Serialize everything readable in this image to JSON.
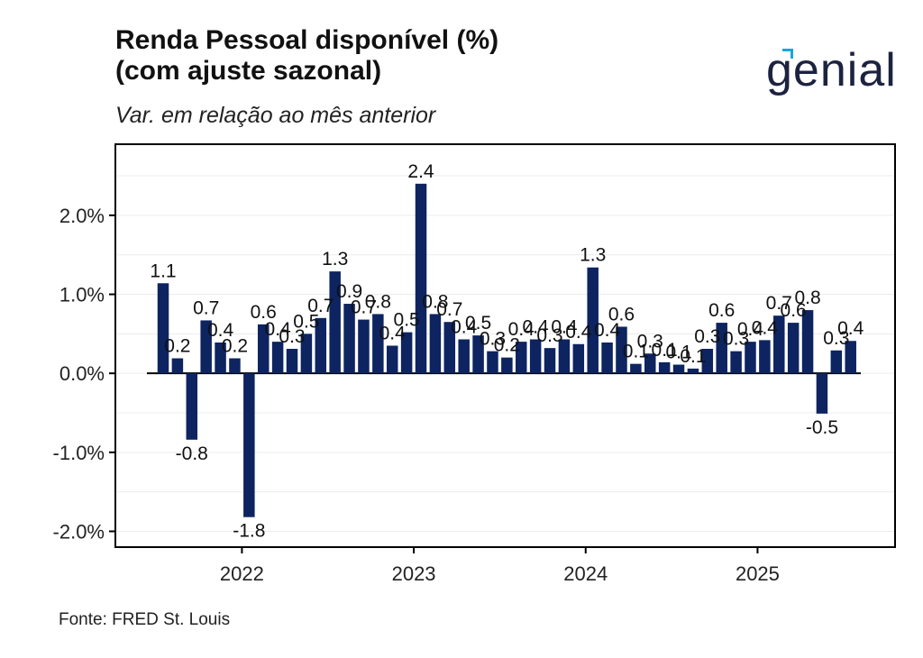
{
  "header": {
    "title_line1": "Renda Pessoal disponível (%)",
    "title_line2": "(com ajuste sazonal)",
    "subtitle": "Var. em relação ao mês anterior"
  },
  "logo": {
    "text": "genial",
    "accent_color": "#19a7d6",
    "text_color": "#1c2340"
  },
  "footer": {
    "source": "Fonte: FRED St. Louis"
  },
  "colors": {
    "bar": "#0d2461",
    "axis": "#000000",
    "grid": "#ececec"
  },
  "chart_data": {
    "type": "bar",
    "title": "Renda Pessoal disponível (%) (com ajuste sazonal)",
    "subtitle": "Var. em relação ao mês anterior",
    "x": [
      "2021-07",
      "2021-08",
      "2021-09",
      "2021-10",
      "2021-11",
      "2021-12",
      "2022-01",
      "2022-02",
      "2022-03",
      "2022-04",
      "2022-05",
      "2022-06",
      "2022-07",
      "2022-08",
      "2022-09",
      "2022-10",
      "2022-11",
      "2022-12",
      "2023-01",
      "2023-02",
      "2023-03",
      "2023-04",
      "2023-05",
      "2023-06",
      "2023-07",
      "2023-08",
      "2023-09",
      "2023-10",
      "2023-11",
      "2023-12",
      "2024-01",
      "2024-02",
      "2024-03",
      "2024-04",
      "2024-05",
      "2024-06",
      "2024-07",
      "2024-08",
      "2024-09",
      "2024-10",
      "2024-11",
      "2024-12",
      "2025-01",
      "2025-02",
      "2025-03",
      "2025-04",
      "2025-05",
      "2025-06",
      "2025-07"
    ],
    "values": [
      1.14,
      0.19,
      -0.84,
      0.67,
      0.39,
      0.19,
      -1.82,
      0.62,
      0.4,
      0.31,
      0.5,
      0.7,
      1.29,
      0.88,
      0.68,
      0.75,
      0.35,
      0.52,
      2.4,
      0.75,
      0.65,
      0.43,
      0.48,
      0.28,
      0.2,
      0.4,
      0.43,
      0.32,
      0.43,
      0.37,
      1.34,
      0.39,
      0.59,
      0.12,
      0.25,
      0.14,
      0.11,
      0.06,
      0.31,
      0.64,
      0.28,
      0.4,
      0.42,
      0.73,
      0.64,
      0.8,
      -0.51,
      0.29,
      0.41
    ],
    "labels": [
      "1.1",
      "0.2",
      "-0.8",
      "0.7",
      "0.4",
      "0.2",
      "-1.8",
      "0.6",
      "0.4",
      "0.3",
      "0.5",
      "0.7",
      "1.3",
      "0.9",
      "0.7",
      "0.8",
      "0.4",
      "0.5",
      "2.4",
      "0.8",
      "0.7",
      "0.4",
      "0.5",
      "0.3",
      "0.2",
      "0.4",
      "0.4",
      "0.3",
      "0.4",
      "0.4",
      "1.3",
      "0.4",
      "0.6",
      "0.1",
      "0.3",
      "0.1",
      "0.1",
      "0.1",
      "0.3",
      "0.6",
      "0.3",
      "0.4",
      "0.4",
      "0.7",
      "0.6",
      "0.8",
      "-0.5",
      "0.3",
      "0.4"
    ],
    "ylim": [
      -2.2,
      2.9
    ],
    "yticks": [
      -2.0,
      -1.0,
      0.0,
      1.0,
      2.0
    ],
    "ytick_labels": [
      "-2.0%",
      "-1.0%",
      "0.0%",
      "1.0%",
      "2.0%"
    ],
    "xticks": [
      "2022",
      "2023",
      "2024",
      "2025"
    ],
    "xlabel": "",
    "ylabel": "",
    "grid": true,
    "legend": false
  }
}
